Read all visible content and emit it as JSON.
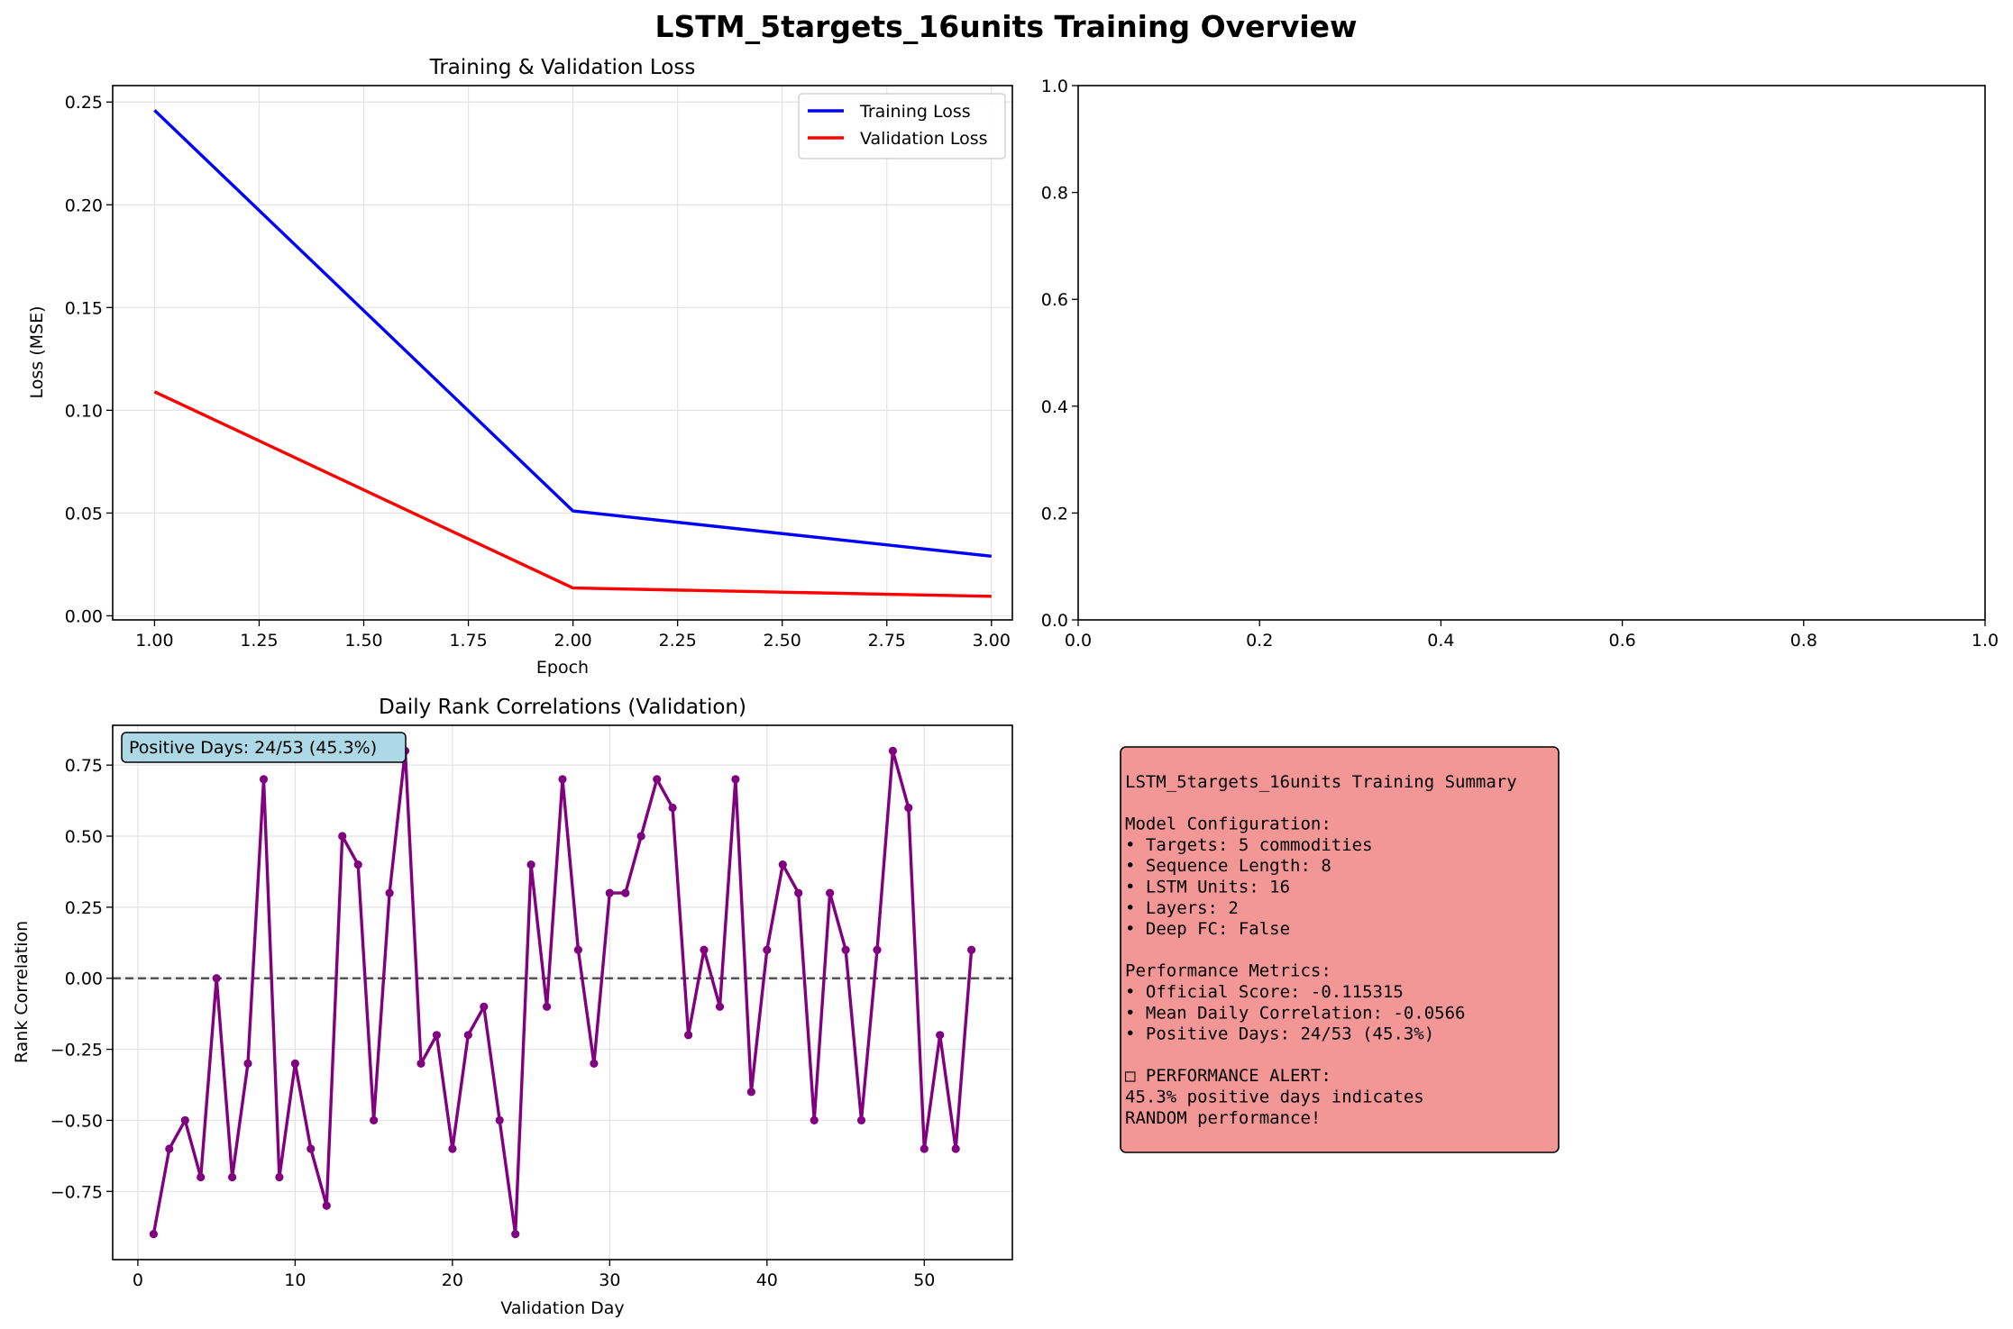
{
  "figure": {
    "title": "LSTM_5targets_16units Training Overview"
  },
  "chart_data": [
    {
      "type": "line",
      "title": "Training & Validation Loss",
      "xlabel": "Epoch",
      "ylabel": "Loss (MSE)",
      "xlim": [
        0.9,
        3.05
      ],
      "ylim": [
        -0.002,
        0.258
      ],
      "xticks": [
        1.0,
        1.25,
        1.5,
        1.75,
        2.0,
        2.25,
        2.5,
        2.75,
        3.0
      ],
      "xtick_labels": [
        "1.00",
        "1.25",
        "1.50",
        "1.75",
        "2.00",
        "2.25",
        "2.50",
        "2.75",
        "3.00"
      ],
      "yticks": [
        0.0,
        0.05,
        0.1,
        0.15,
        0.2,
        0.25
      ],
      "ytick_labels": [
        "0.00",
        "0.05",
        "0.10",
        "0.15",
        "0.20",
        "0.25"
      ],
      "grid": true,
      "legend_position": "top-right",
      "x": [
        1,
        2,
        3
      ],
      "series": [
        {
          "name": "Training Loss",
          "color": "#0000ff",
          "values": [
            0.246,
            0.051,
            0.029
          ]
        },
        {
          "name": "Validation Loss",
          "color": "#ff0000",
          "values": [
            0.109,
            0.0135,
            0.0095
          ]
        }
      ]
    },
    {
      "type": "line",
      "title": "",
      "xlabel": "",
      "ylabel": "",
      "xlim": [
        0.0,
        1.0
      ],
      "ylim": [
        0.0,
        1.0
      ],
      "xticks": [
        0.0,
        0.2,
        0.4,
        0.6,
        0.8,
        1.0
      ],
      "xtick_labels": [
        "0.0",
        "0.2",
        "0.4",
        "0.6",
        "0.8",
        "1.0"
      ],
      "yticks": [
        0.0,
        0.2,
        0.4,
        0.6,
        0.8,
        1.0
      ],
      "ytick_labels": [
        "0.0",
        "0.2",
        "0.4",
        "0.6",
        "0.8",
        "1.0"
      ],
      "grid": false,
      "series": []
    },
    {
      "type": "line",
      "title": "Daily Rank Correlations (Validation)",
      "xlabel": "Validation Day",
      "ylabel": "Rank Correlation",
      "xlim": [
        -1.6,
        55.6
      ],
      "ylim": [
        -0.99,
        0.89
      ],
      "xticks": [
        0,
        10,
        20,
        30,
        40,
        50
      ],
      "xtick_labels": [
        "0",
        "10",
        "20",
        "30",
        "40",
        "50"
      ],
      "yticks": [
        -0.75,
        -0.5,
        -0.25,
        0.0,
        0.25,
        0.5,
        0.75
      ],
      "ytick_labels": [
        "−0.75",
        "−0.50",
        "−0.25",
        "0.00",
        "0.25",
        "0.50",
        "0.75"
      ],
      "grid": true,
      "reference_line": {
        "y": 0.0,
        "style": "dashed",
        "color": "#555555"
      },
      "annotation": "Positive Days: 24/53 (45.3%)",
      "series": [
        {
          "color": "#800080",
          "x": [
            1,
            2,
            3,
            4,
            5,
            6,
            7,
            8,
            9,
            10,
            11,
            12,
            13,
            14,
            15,
            16,
            17,
            18,
            19,
            20,
            21,
            22,
            23,
            24,
            25,
            26,
            27,
            28,
            29,
            30,
            31,
            32,
            33,
            34,
            35,
            36,
            37,
            38,
            39,
            40,
            41,
            42,
            43,
            44,
            45,
            46,
            47,
            48,
            49,
            50,
            51,
            52,
            53
          ],
          "values": [
            -0.9,
            -0.6,
            -0.5,
            -0.7,
            0.0,
            -0.7,
            -0.3,
            0.7,
            -0.7,
            -0.3,
            -0.6,
            -0.8,
            0.5,
            0.4,
            -0.5,
            0.3,
            0.8,
            -0.3,
            -0.2,
            -0.6,
            -0.2,
            -0.1,
            -0.5,
            -0.9,
            0.4,
            -0.1,
            0.7,
            0.1,
            -0.3,
            0.3,
            0.3,
            0.5,
            0.7,
            0.6,
            -0.2,
            0.1,
            -0.1,
            0.7,
            -0.4,
            0.1,
            0.4,
            0.3,
            -0.5,
            0.3,
            0.1,
            -0.5,
            0.1,
            0.8,
            0.6,
            -0.6,
            -0.2,
            -0.6,
            0.1
          ]
        }
      ]
    }
  ],
  "summary_box": {
    "background": "#f29796",
    "lines": [
      "LSTM_5targets_16units Training Summary",
      "",
      "Model Configuration:",
      "• Targets: 5 commodities",
      "• Sequence Length: 8",
      "• LSTM Units: 16",
      "• Layers: 2",
      "• Deep FC: False",
      "",
      "Performance Metrics:",
      "• Official Score: -0.115315",
      "• Mean Daily Correlation: -0.0566",
      "• Positive Days: 24/53 (45.3%)",
      "",
      "□ PERFORMANCE ALERT:",
      "45.3% positive days indicates",
      "RANDOM performance!"
    ]
  }
}
